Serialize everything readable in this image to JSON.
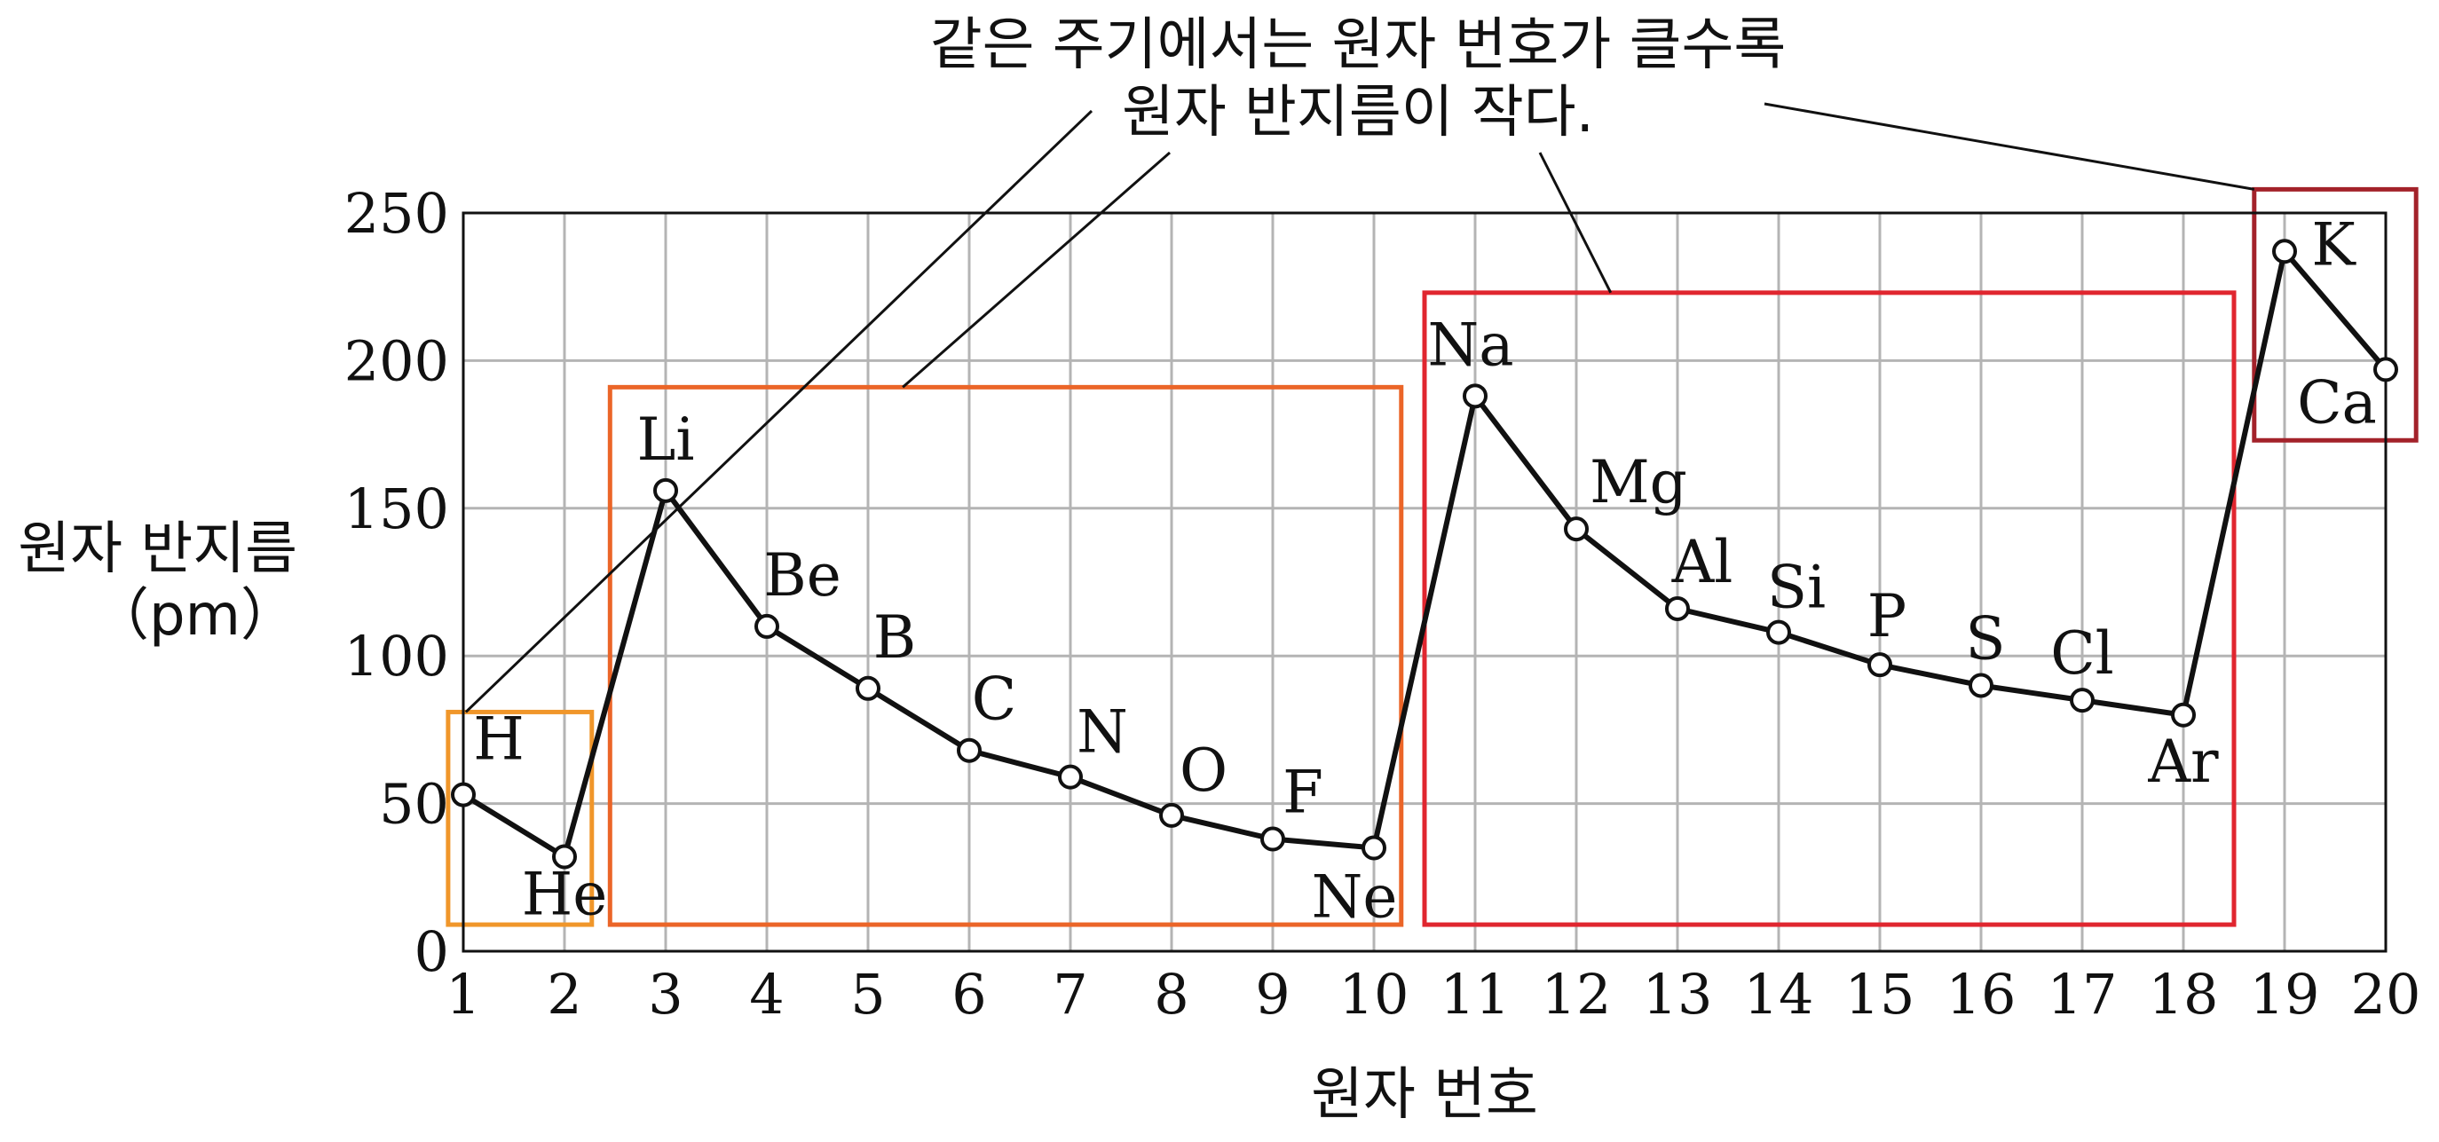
{
  "chart_data": {
    "type": "line",
    "title": "",
    "annotation": [
      "같은 주기에서는 원자 번호가 클수록",
      "원자 반지름이 작다."
    ],
    "xlabel": "원자 번호",
    "ylabel": [
      "원자 반지름",
      "（pm）"
    ],
    "xlim": [
      1,
      20
    ],
    "ylim": [
      0,
      250
    ],
    "x_ticks": [
      1,
      2,
      3,
      4,
      5,
      6,
      7,
      8,
      9,
      10,
      11,
      12,
      13,
      14,
      15,
      16,
      17,
      18,
      19,
      20
    ],
    "y_ticks": [
      0,
      50,
      100,
      150,
      200,
      250
    ],
    "grid": true,
    "series": [
      {
        "x": [
          1,
          2,
          3,
          4,
          5,
          6,
          7,
          8,
          9,
          10,
          11,
          12,
          13,
          14,
          15,
          16,
          17,
          18,
          19,
          20
        ],
        "values": [
          53,
          32,
          156,
          110,
          89,
          68,
          59,
          46,
          38,
          35,
          188,
          143,
          116,
          108,
          97,
          90,
          85,
          80,
          237,
          197
        ],
        "labels": [
          "H",
          "He",
          "Li",
          "Be",
          "B",
          "C",
          "N",
          "O",
          "F",
          "Ne",
          "Na",
          "Mg",
          "Al",
          "Si",
          "P",
          "S",
          "Cl",
          "Ar",
          "K",
          "Ca"
        ]
      }
    ],
    "period_groups": [
      {
        "from": 1,
        "to": 2,
        "color": "#f0962a"
      },
      {
        "from": 3,
        "to": 10,
        "color": "#eb6528"
      },
      {
        "from": 11,
        "to": 18,
        "color": "#e0262f"
      },
      {
        "from": 19,
        "to": 20,
        "color": "#a3222a"
      }
    ]
  }
}
